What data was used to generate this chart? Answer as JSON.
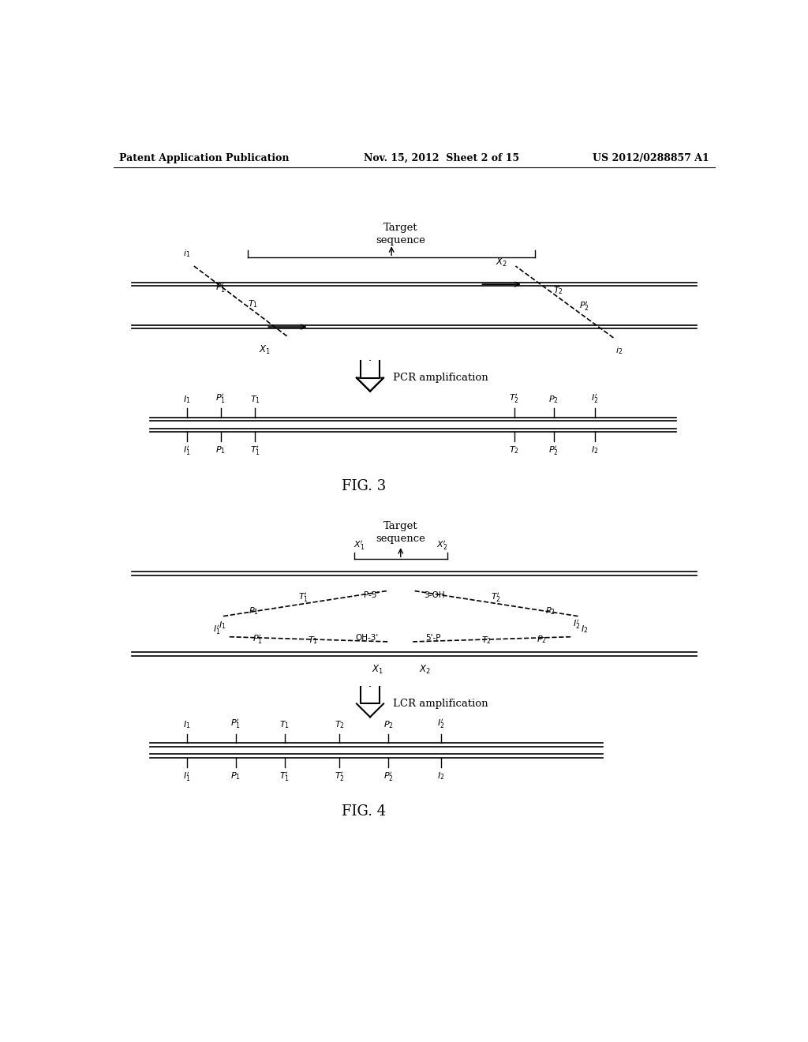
{
  "bg_color": "#ffffff",
  "text_color": "#000000",
  "header_left": "Patent Application Publication",
  "header_center": "Nov. 15, 2012  Sheet 2 of 15",
  "header_right": "US 2012/0288857 A1",
  "fig3_label": "FIG. 3",
  "fig4_label": "FIG. 4",
  "pcr_label": "PCR amplification",
  "lcr_label": "LCR amplification"
}
